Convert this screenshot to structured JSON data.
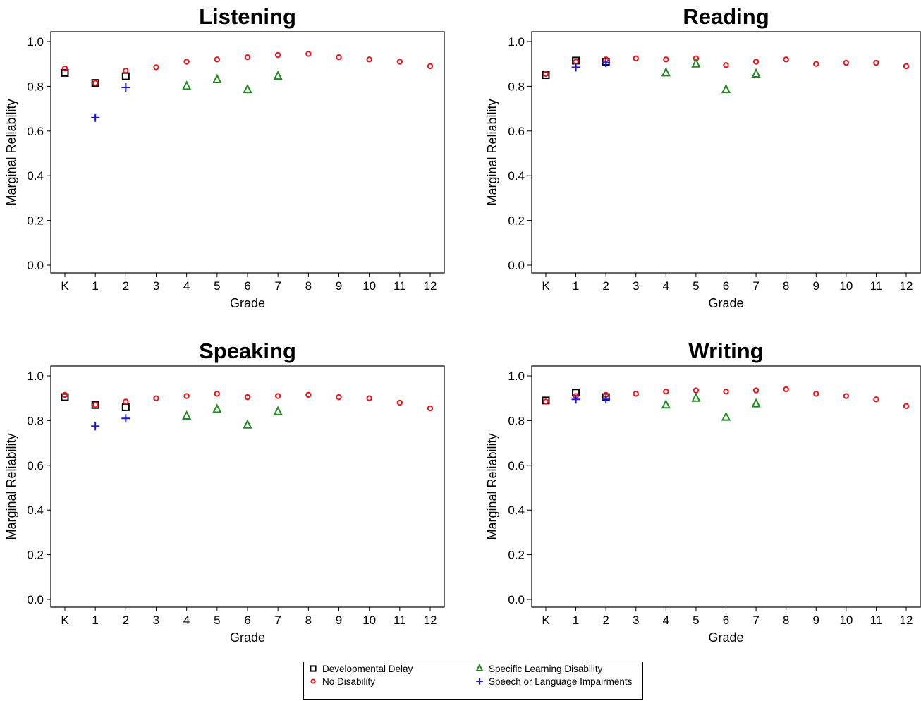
{
  "chart_data": {
    "type": "scatter",
    "categories": [
      "K",
      "1",
      "2",
      "3",
      "4",
      "5",
      "6",
      "7",
      "8",
      "9",
      "10",
      "11",
      "12"
    ],
    "xlabel": "Grade",
    "ylabel": "Marginal Reliability",
    "ylim": [
      0,
      1
    ],
    "yticks": [
      "0.0",
      "0.2",
      "0.4",
      "0.6",
      "0.8",
      "1.0"
    ],
    "grid": false,
    "legend_placement": "bottom",
    "groups": [
      {
        "name": "Developmental Delay",
        "marker": "square",
        "color": "#000000"
      },
      {
        "name": "No Disability",
        "marker": "circle",
        "color": "#e8141b"
      },
      {
        "name": "Specific Learning Disability",
        "marker": "triangle",
        "color": "#1f8a1f"
      },
      {
        "name": "Speech or Language Impairments",
        "marker": "plus",
        "color": "#1515e0"
      }
    ],
    "panels": [
      {
        "title": "Listening",
        "series": [
          {
            "name": "Developmental Delay",
            "x": [
              "K",
              "1",
              "2"
            ],
            "values": [
              0.86,
              0.815,
              0.845
            ]
          },
          {
            "name": "No Disability",
            "x": [
              "K",
              "1",
              "2",
              "3",
              "4",
              "5",
              "6",
              "7",
              "8",
              "9",
              "10",
              "11",
              "12"
            ],
            "values": [
              0.88,
              0.815,
              0.87,
              0.885,
              0.91,
              0.92,
              0.93,
              0.94,
              0.945,
              0.93,
              0.92,
              0.91,
              0.89
            ]
          },
          {
            "name": "Specific Learning Disability",
            "x": [
              "4",
              "5",
              "6",
              "7"
            ],
            "values": [
              0.8,
              0.83,
              0.785,
              0.845
            ]
          },
          {
            "name": "Speech or Language Impairments",
            "x": [
              "1",
              "2"
            ],
            "values": [
              0.66,
              0.795
            ]
          }
        ]
      },
      {
        "title": "Reading",
        "series": [
          {
            "name": "Developmental Delay",
            "x": [
              "K",
              "1",
              "2"
            ],
            "values": [
              0.85,
              0.915,
              0.91
            ]
          },
          {
            "name": "No Disability",
            "x": [
              "K",
              "1",
              "2",
              "3",
              "4",
              "5",
              "6",
              "7",
              "8",
              "9",
              "10",
              "11",
              "12"
            ],
            "values": [
              0.855,
              0.91,
              0.92,
              0.925,
              0.92,
              0.925,
              0.895,
              0.91,
              0.92,
              0.9,
              0.905,
              0.905,
              0.89
            ]
          },
          {
            "name": "Specific Learning Disability",
            "x": [
              "4",
              "5",
              "6",
              "7"
            ],
            "values": [
              0.86,
              0.9,
              0.785,
              0.855
            ]
          },
          {
            "name": "Speech or Language Impairments",
            "x": [
              "1",
              "2"
            ],
            "values": [
              0.885,
              0.905
            ]
          }
        ]
      },
      {
        "title": "Speaking",
        "series": [
          {
            "name": "Developmental Delay",
            "x": [
              "K",
              "1",
              "2"
            ],
            "values": [
              0.905,
              0.87,
              0.86
            ]
          },
          {
            "name": "No Disability",
            "x": [
              "K",
              "1",
              "2",
              "3",
              "4",
              "5",
              "6",
              "7",
              "8",
              "9",
              "10",
              "11",
              "12"
            ],
            "values": [
              0.915,
              0.87,
              0.885,
              0.9,
              0.91,
              0.92,
              0.905,
              0.91,
              0.915,
              0.905,
              0.9,
              0.88,
              0.855
            ]
          },
          {
            "name": "Specific Learning Disability",
            "x": [
              "4",
              "5",
              "6",
              "7"
            ],
            "values": [
              0.82,
              0.85,
              0.78,
              0.84
            ]
          },
          {
            "name": "Speech or Language Impairments",
            "x": [
              "1",
              "2"
            ],
            "values": [
              0.775,
              0.81
            ]
          }
        ]
      },
      {
        "title": "Writing",
        "series": [
          {
            "name": "Developmental Delay",
            "x": [
              "K",
              "1",
              "2"
            ],
            "values": [
              0.89,
              0.925,
              0.905
            ]
          },
          {
            "name": "No Disability",
            "x": [
              "K",
              "1",
              "2",
              "3",
              "4",
              "5",
              "6",
              "7",
              "8",
              "9",
              "10",
              "11",
              "12"
            ],
            "values": [
              0.885,
              0.91,
              0.915,
              0.92,
              0.93,
              0.935,
              0.93,
              0.935,
              0.94,
              0.92,
              0.91,
              0.895,
              0.865
            ]
          },
          {
            "name": "Specific Learning Disability",
            "x": [
              "4",
              "5",
              "6",
              "7"
            ],
            "values": [
              0.87,
              0.9,
              0.815,
              0.875
            ]
          },
          {
            "name": "Speech or Language Impairments",
            "x": [
              "1",
              "2"
            ],
            "values": [
              0.895,
              0.895
            ]
          }
        ]
      }
    ]
  }
}
